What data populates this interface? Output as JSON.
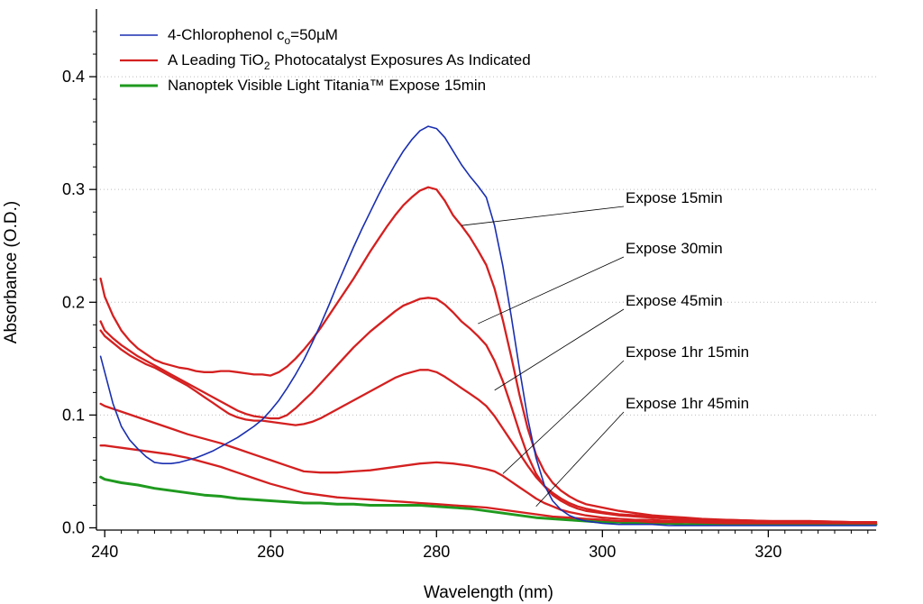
{
  "chart_data": {
    "type": "line",
    "title": "",
    "xlabel": "Wavelength (nm)",
    "ylabel": "Absorbance (O.D.)",
    "xlim": [
      239,
      333
    ],
    "ylim": [
      -0.002,
      0.46
    ],
    "x_ticks": [
      240,
      260,
      280,
      300,
      320
    ],
    "x_tick_labels": [
      "240",
      "260",
      "280",
      "300",
      "320"
    ],
    "y_ticks": [
      0.0,
      0.1,
      0.2,
      0.3,
      0.4
    ],
    "y_tick_labels": [
      "0.0",
      "0.1",
      "0.2",
      "0.3",
      "0.4"
    ],
    "grid": "horizontal dotted",
    "legend_position": "top-left",
    "legend": [
      {
        "text": "4-Chlorophenol c",
        "sub": "o",
        "tail": "=50µM",
        "color": "#1a2fb0"
      },
      {
        "text": "A Leading TiO",
        "sub": "2",
        "tail": " Photocatalyst Exposures As Indicated",
        "color": "#d42020"
      },
      {
        "text": "Nanoptek Visible Light Titania™ Expose 15min",
        "sub": "",
        "tail": "",
        "color": "#1f9a1f"
      }
    ],
    "annotations": [
      {
        "text": "Expose 15min",
        "x": 283,
        "y": 0.268
      },
      {
        "text": "Expose 30min",
        "x": 285,
        "y": 0.181
      },
      {
        "text": "Expose 45min",
        "x": 287,
        "y": 0.122
      },
      {
        "text": "Expose 1hr 15min",
        "x": 288,
        "y": 0.048
      },
      {
        "text": "Expose 1hr 45min",
        "x": 292,
        "y": 0.019
      }
    ],
    "series": [
      {
        "name": "4-Chlorophenol",
        "color": "#1a2fb0",
        "width": 1.6,
        "x": [
          239.5,
          240,
          241,
          242,
          243,
          244,
          245,
          246,
          247,
          248,
          249,
          250,
          251,
          252,
          253,
          254,
          255,
          256,
          257,
          258,
          259,
          260,
          261,
          262,
          263,
          264,
          265,
          266,
          267,
          268,
          269,
          270,
          271,
          272,
          273,
          274,
          275,
          276,
          277,
          278,
          279,
          280,
          281,
          282,
          283,
          284,
          285,
          286,
          287,
          288,
          289,
          290,
          291,
          292,
          293,
          294,
          295,
          296,
          297,
          298,
          299,
          300,
          302,
          304,
          306,
          308,
          310,
          312,
          315,
          320,
          325,
          330,
          333
        ],
        "y": [
          0.152,
          0.138,
          0.11,
          0.09,
          0.078,
          0.07,
          0.063,
          0.058,
          0.057,
          0.057,
          0.058,
          0.06,
          0.062,
          0.065,
          0.068,
          0.072,
          0.076,
          0.08,
          0.085,
          0.09,
          0.096,
          0.104,
          0.113,
          0.124,
          0.136,
          0.149,
          0.164,
          0.18,
          0.197,
          0.215,
          0.232,
          0.249,
          0.265,
          0.28,
          0.295,
          0.309,
          0.322,
          0.334,
          0.344,
          0.352,
          0.356,
          0.354,
          0.346,
          0.334,
          0.322,
          0.312,
          0.303,
          0.293,
          0.268,
          0.232,
          0.188,
          0.141,
          0.097,
          0.062,
          0.038,
          0.024,
          0.016,
          0.011,
          0.008,
          0.006,
          0.005,
          0.004,
          0.003,
          0.003,
          0.003,
          0.002,
          0.002,
          0.002,
          0.002,
          0.002,
          0.002,
          0.002,
          0.002
        ]
      },
      {
        "name": "Expose 15min",
        "color": "#d42020",
        "width": 2.3,
        "x": [
          239.5,
          240,
          241,
          242,
          243,
          244,
          245,
          246,
          247,
          248,
          249,
          250,
          251,
          252,
          253,
          254,
          255,
          256,
          257,
          258,
          259,
          260,
          261,
          262,
          263,
          264,
          265,
          266,
          267,
          268,
          269,
          270,
          271,
          272,
          273,
          274,
          275,
          276,
          277,
          278,
          279,
          280,
          281,
          282,
          283,
          284,
          285,
          286,
          287,
          288,
          289,
          290,
          291,
          292,
          293,
          294,
          295,
          296,
          297,
          298,
          300,
          302,
          304,
          306,
          308,
          310,
          312,
          315,
          320,
          325,
          330,
          333
        ],
        "y": [
          0.221,
          0.205,
          0.188,
          0.175,
          0.166,
          0.159,
          0.154,
          0.149,
          0.146,
          0.144,
          0.142,
          0.141,
          0.139,
          0.138,
          0.138,
          0.139,
          0.139,
          0.138,
          0.137,
          0.136,
          0.136,
          0.135,
          0.138,
          0.143,
          0.15,
          0.158,
          0.167,
          0.177,
          0.188,
          0.199,
          0.21,
          0.221,
          0.233,
          0.245,
          0.256,
          0.267,
          0.277,
          0.286,
          0.293,
          0.299,
          0.302,
          0.3,
          0.29,
          0.277,
          0.268,
          0.258,
          0.246,
          0.233,
          0.212,
          0.184,
          0.152,
          0.118,
          0.088,
          0.065,
          0.05,
          0.04,
          0.033,
          0.028,
          0.024,
          0.021,
          0.018,
          0.015,
          0.013,
          0.011,
          0.01,
          0.009,
          0.008,
          0.007,
          0.006,
          0.006,
          0.005,
          0.005
        ]
      },
      {
        "name": "Expose 30min",
        "color": "#d42020",
        "width": 2.3,
        "x": [
          239.5,
          240,
          241,
          242,
          243,
          244,
          245,
          246,
          247,
          248,
          249,
          250,
          251,
          252,
          253,
          254,
          255,
          256,
          257,
          258,
          259,
          260,
          261,
          262,
          263,
          264,
          265,
          266,
          267,
          268,
          269,
          270,
          271,
          272,
          273,
          274,
          275,
          276,
          277,
          278,
          279,
          280,
          281,
          282,
          283,
          284,
          285,
          286,
          287,
          288,
          289,
          290,
          291,
          292,
          293,
          294,
          295,
          296,
          297,
          298,
          300,
          302,
          304,
          306,
          308,
          310,
          312,
          315,
          320,
          325,
          330,
          333
        ],
        "y": [
          0.183,
          0.175,
          0.168,
          0.162,
          0.157,
          0.152,
          0.148,
          0.144,
          0.14,
          0.136,
          0.132,
          0.128,
          0.124,
          0.12,
          0.116,
          0.112,
          0.108,
          0.104,
          0.101,
          0.099,
          0.098,
          0.097,
          0.097,
          0.1,
          0.106,
          0.113,
          0.12,
          0.128,
          0.136,
          0.144,
          0.152,
          0.16,
          0.167,
          0.174,
          0.18,
          0.186,
          0.192,
          0.197,
          0.2,
          0.203,
          0.204,
          0.203,
          0.198,
          0.191,
          0.183,
          0.177,
          0.17,
          0.162,
          0.148,
          0.13,
          0.108,
          0.085,
          0.064,
          0.048,
          0.037,
          0.029,
          0.024,
          0.02,
          0.017,
          0.015,
          0.013,
          0.011,
          0.01,
          0.009,
          0.008,
          0.007,
          0.007,
          0.006,
          0.006,
          0.005,
          0.005,
          0.005
        ]
      },
      {
        "name": "Expose 45min",
        "color": "#d42020",
        "width": 2.3,
        "x": [
          239.5,
          240,
          241,
          242,
          243,
          244,
          245,
          246,
          247,
          248,
          249,
          250,
          251,
          252,
          253,
          254,
          255,
          256,
          257,
          258,
          259,
          260,
          261,
          262,
          263,
          264,
          265,
          266,
          267,
          268,
          269,
          270,
          271,
          272,
          273,
          274,
          275,
          276,
          277,
          278,
          279,
          280,
          281,
          282,
          283,
          284,
          285,
          286,
          287,
          288,
          289,
          290,
          291,
          292,
          293,
          294,
          295,
          296,
          297,
          298,
          300,
          302,
          304,
          306,
          308,
          310,
          312,
          315,
          320,
          325,
          330,
          333
        ],
        "y": [
          0.175,
          0.17,
          0.164,
          0.158,
          0.153,
          0.149,
          0.145,
          0.142,
          0.138,
          0.134,
          0.13,
          0.126,
          0.121,
          0.116,
          0.111,
          0.106,
          0.101,
          0.098,
          0.096,
          0.095,
          0.095,
          0.094,
          0.093,
          0.092,
          0.091,
          0.092,
          0.094,
          0.097,
          0.101,
          0.105,
          0.109,
          0.113,
          0.117,
          0.121,
          0.125,
          0.129,
          0.133,
          0.136,
          0.138,
          0.14,
          0.14,
          0.138,
          0.134,
          0.129,
          0.124,
          0.119,
          0.114,
          0.108,
          0.099,
          0.088,
          0.077,
          0.066,
          0.055,
          0.045,
          0.037,
          0.031,
          0.026,
          0.022,
          0.019,
          0.017,
          0.014,
          0.012,
          0.011,
          0.01,
          0.009,
          0.008,
          0.007,
          0.007,
          0.006,
          0.006,
          0.005,
          0.005
        ]
      },
      {
        "name": "Expose 1hr 15min",
        "color": "#d42020",
        "width": 2.3,
        "x": [
          239.5,
          240,
          242,
          244,
          246,
          248,
          250,
          252,
          254,
          256,
          258,
          260,
          262,
          264,
          266,
          268,
          270,
          272,
          274,
          276,
          278,
          280,
          282,
          284,
          286,
          287,
          288,
          289,
          290,
          291,
          292,
          293,
          294,
          295,
          296,
          298,
          300,
          302,
          304,
          306,
          308,
          310,
          315,
          320,
          325,
          330,
          333
        ],
        "y": [
          0.11,
          0.108,
          0.103,
          0.098,
          0.093,
          0.088,
          0.083,
          0.079,
          0.075,
          0.07,
          0.065,
          0.06,
          0.055,
          0.05,
          0.049,
          0.049,
          0.05,
          0.051,
          0.053,
          0.055,
          0.057,
          0.058,
          0.057,
          0.055,
          0.052,
          0.05,
          0.046,
          0.041,
          0.036,
          0.031,
          0.026,
          0.022,
          0.019,
          0.016,
          0.014,
          0.011,
          0.009,
          0.008,
          0.007,
          0.007,
          0.006,
          0.006,
          0.005,
          0.005,
          0.005,
          0.004,
          0.004
        ]
      },
      {
        "name": "Expose 1hr 45min",
        "color": "#d42020",
        "width": 2.3,
        "x": [
          239.5,
          240,
          242,
          244,
          246,
          248,
          250,
          252,
          254,
          256,
          258,
          260,
          262,
          264,
          266,
          268,
          270,
          272,
          274,
          276,
          278,
          280,
          282,
          284,
          286,
          288,
          290,
          292,
          294,
          296,
          298,
          300,
          302,
          304,
          306,
          308,
          310,
          315,
          320,
          325,
          330,
          333
        ],
        "y": [
          0.073,
          0.073,
          0.071,
          0.069,
          0.067,
          0.065,
          0.062,
          0.058,
          0.054,
          0.049,
          0.044,
          0.039,
          0.035,
          0.031,
          0.029,
          0.027,
          0.026,
          0.025,
          0.024,
          0.023,
          0.022,
          0.021,
          0.02,
          0.019,
          0.018,
          0.016,
          0.014,
          0.012,
          0.01,
          0.009,
          0.008,
          0.007,
          0.006,
          0.006,
          0.005,
          0.005,
          0.005,
          0.004,
          0.004,
          0.004,
          0.004,
          0.004
        ]
      },
      {
        "name": "Nanoptek Visible Light Titania™",
        "color": "#1f9a1f",
        "width": 3.0,
        "x": [
          239.5,
          240,
          242,
          244,
          246,
          248,
          250,
          252,
          254,
          256,
          258,
          260,
          262,
          264,
          266,
          268,
          270,
          272,
          274,
          276,
          278,
          280,
          282,
          284,
          286,
          288,
          290,
          292,
          294,
          296,
          298,
          300,
          302,
          304,
          306,
          308,
          310,
          315,
          320,
          325,
          330,
          333
        ],
        "y": [
          0.045,
          0.043,
          0.04,
          0.038,
          0.035,
          0.033,
          0.031,
          0.029,
          0.028,
          0.026,
          0.025,
          0.024,
          0.023,
          0.022,
          0.022,
          0.021,
          0.021,
          0.02,
          0.02,
          0.02,
          0.02,
          0.019,
          0.018,
          0.017,
          0.015,
          0.013,
          0.011,
          0.009,
          0.008,
          0.007,
          0.006,
          0.005,
          0.005,
          0.004,
          0.004,
          0.004,
          0.003,
          0.003,
          0.003,
          0.003,
          0.003,
          0.003
        ]
      }
    ]
  }
}
